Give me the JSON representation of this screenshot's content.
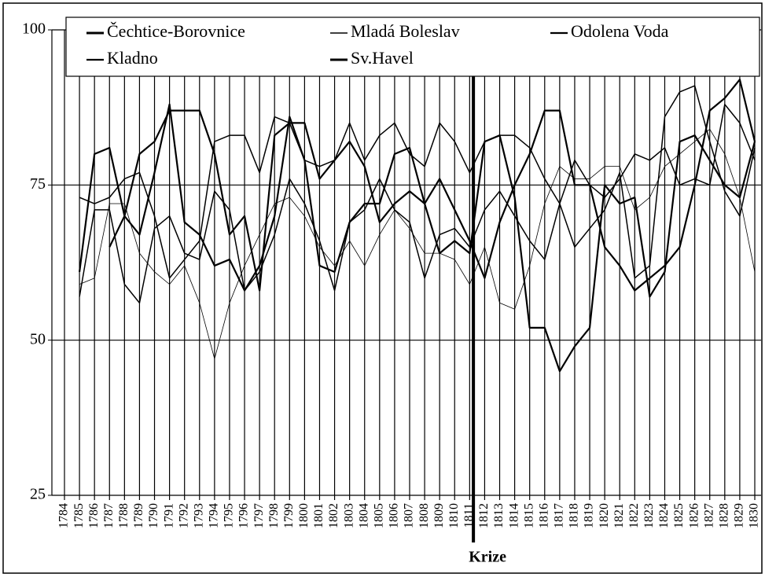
{
  "chart_data": {
    "type": "line",
    "categories": [
      "1784",
      "1785",
      "1786",
      "1787",
      "1788",
      "1789",
      "1790",
      "1791",
      "1792",
      "1793",
      "1794",
      "1795",
      "1796",
      "1797",
      "1798",
      "1799",
      "1800",
      "1801",
      "1802",
      "1803",
      "1804",
      "1805",
      "1806",
      "1807",
      "1808",
      "1809",
      "1810",
      "1811",
      "1812",
      "1813",
      "1814",
      "1815",
      "1816",
      "1817",
      "1818",
      "1819",
      "1820",
      "1821",
      "1822",
      "1823",
      "1824",
      "1825",
      "1826",
      "1827",
      "1828",
      "1829",
      "1830"
    ],
    "series": [
      {
        "name": "Čechtice-Borovnice",
        "color": "#000000",
        "width": 2.2,
        "values": [
          null,
          61,
          80,
          81,
          70,
          67,
          77,
          88,
          69,
          67,
          62,
          63,
          58,
          62,
          70,
          86,
          79,
          62,
          61,
          69,
          72,
          72,
          80,
          81,
          72,
          64,
          66,
          64,
          82,
          83,
          73,
          52,
          52,
          45,
          49,
          52,
          75,
          72,
          73,
          57,
          61,
          82,
          83,
          79,
          75,
          73,
          82
        ]
      },
      {
        "name": "Mladá Boleslav",
        "color": "#000000",
        "width": 0.8,
        "values": [
          null,
          59,
          60,
          72,
          72,
          64,
          61,
          59,
          62,
          56,
          47,
          56,
          62,
          67,
          72,
          73,
          70,
          65,
          62,
          66,
          62,
          67,
          71,
          68,
          64,
          64,
          63,
          59,
          65,
          56,
          55,
          62,
          72,
          78,
          76,
          76,
          78,
          78,
          71,
          73,
          78,
          80,
          82,
          84,
          80,
          73,
          61
        ]
      },
      {
        "name": "Odolena Voda",
        "color": "#000000",
        "width": 1.5,
        "values": [
          null,
          73,
          72,
          73,
          76,
          77,
          70,
          60,
          63,
          66,
          82,
          83,
          83,
          77,
          86,
          85,
          79,
          78,
          79,
          85,
          79,
          83,
          85,
          80,
          78,
          85,
          82,
          77,
          82,
          83,
          83,
          81,
          76,
          72,
          79,
          75,
          73,
          76,
          80,
          79,
          81,
          75,
          76,
          75,
          88,
          85,
          79
        ]
      },
      {
        "name": "Kladno",
        "color": "#000000",
        "width": 1.5,
        "values": [
          null,
          57,
          71,
          71,
          59,
          56,
          68,
          70,
          64,
          63,
          74,
          71,
          58,
          61,
          67,
          76,
          72,
          66,
          58,
          69,
          71,
          76,
          71,
          69,
          60,
          67,
          68,
          65,
          71,
          74,
          70,
          66,
          63,
          72,
          65,
          68,
          71,
          77,
          60,
          62,
          86,
          90,
          91,
          82,
          74,
          70,
          81
        ]
      },
      {
        "name": "Sv.Havel",
        "color": "#000000",
        "width": 2.2,
        "values": [
          null,
          null,
          null,
          65,
          70,
          80,
          82,
          87,
          87,
          87,
          80,
          67,
          70,
          58,
          83,
          85,
          85,
          76,
          79,
          82,
          78,
          69,
          72,
          74,
          72,
          76,
          71,
          66,
          60,
          69,
          75,
          80,
          87,
          87,
          75,
          75,
          65,
          62,
          58,
          60,
          62,
          65,
          75,
          87,
          89,
          92,
          82
        ]
      }
    ],
    "ylim": [
      25,
      100
    ],
    "yticks": [
      25,
      50,
      75,
      100
    ],
    "grid": true,
    "annotation": {
      "text": "Krize",
      "x": "1812"
    }
  }
}
